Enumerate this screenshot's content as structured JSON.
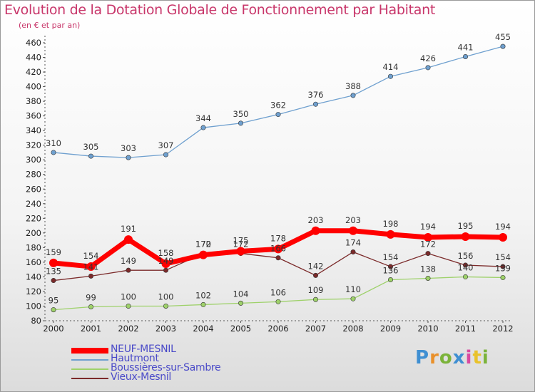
{
  "title": "Evolution de la Dotation Globale de Fonctionnement par Habitant",
  "subtitle": "(en € et par an)",
  "logo": {
    "letters": [
      "P",
      "r",
      "o",
      "x",
      "i",
      "t",
      "i"
    ]
  },
  "chart_data": {
    "type": "line",
    "x": [
      "2000",
      "2001",
      "2002",
      "2003",
      "2004",
      "2005",
      "2006",
      "2007",
      "2008",
      "2009",
      "2010",
      "2011",
      "2012"
    ],
    "ylim": [
      80,
      460
    ],
    "yticks": [
      80,
      100,
      120,
      140,
      160,
      180,
      200,
      220,
      240,
      260,
      280,
      300,
      320,
      340,
      360,
      380,
      400,
      420,
      440,
      460
    ],
    "grid": false,
    "legend_position": "bottom-left",
    "series": [
      {
        "name": "NEUF-MESNIL",
        "color": "#ff0000",
        "values": [
          159,
          154,
          191,
          158,
          170,
          175,
          178,
          203,
          203,
          198,
          194,
          195,
          194
        ]
      },
      {
        "name": "Hautmont",
        "color": "#6fa0cf",
        "values": [
          310,
          305,
          303,
          307,
          344,
          350,
          362,
          376,
          388,
          414,
          426,
          441,
          455
        ]
      },
      {
        "name": "Boussières-sur-Sambre",
        "color": "#9ed16a",
        "values": [
          95,
          99,
          100,
          100,
          102,
          104,
          106,
          109,
          110,
          136,
          138,
          140,
          139
        ]
      },
      {
        "name": "Vieux-Mesnil",
        "color": "#7b2a2a",
        "values": [
          135,
          141,
          149,
          149,
          172,
          172,
          166,
          142,
          174,
          154,
          172,
          156,
          154
        ]
      }
    ]
  }
}
